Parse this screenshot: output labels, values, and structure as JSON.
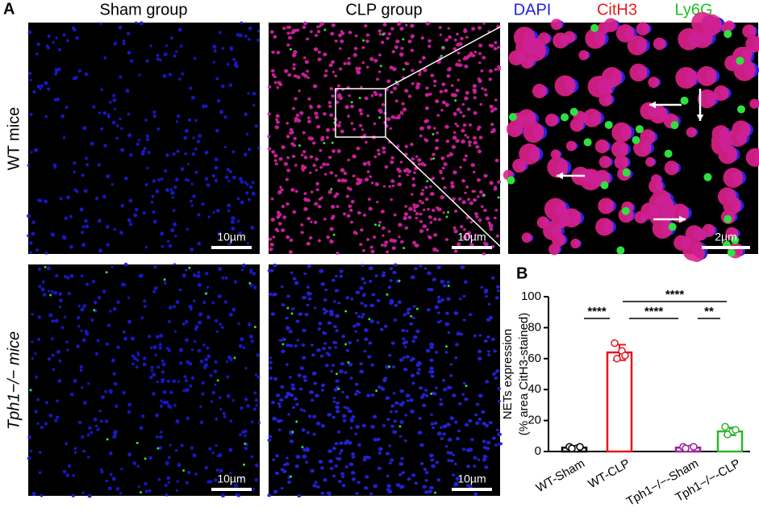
{
  "panel_a": {
    "label": "A",
    "columns": [
      "Sham group",
      "CLP group"
    ],
    "stains": [
      "DAPI",
      "CitH3",
      "Ly6G"
    ],
    "rows": [
      "WT mice",
      "Tph1−/− mice"
    ],
    "scale_bars": [
      "10µm",
      "10µm",
      "2µm",
      "10µm",
      "10µm"
    ]
  },
  "chart_data": {
    "type": "bar",
    "label": "B",
    "ylabel": [
      "NETs expression",
      "(% area CitH3-stained)"
    ],
    "categories": [
      "WT-Sham",
      "WT-CLP",
      "Tph1−/−-Sham",
      "Tph1−/−-CLP"
    ],
    "values": [
      2.5,
      64,
      2.5,
      13
    ],
    "errors": [
      1,
      5,
      1,
      2.5
    ],
    "points": [
      [
        3,
        2,
        2,
        3
      ],
      [
        70,
        65,
        60,
        62
      ],
      [
        3,
        2,
        2,
        3
      ],
      [
        16,
        13,
        11,
        14
      ]
    ],
    "colors": [
      "#000000",
      "#e8141c",
      "#9b1c9b",
      "#2fb52f"
    ],
    "ylim": [
      0,
      100
    ],
    "yticks": [
      0,
      20,
      40,
      60,
      80,
      100
    ],
    "annotations": [
      {
        "label": "****",
        "between": [
          0,
          1
        ]
      },
      {
        "label": "****",
        "between": [
          1,
          2
        ]
      },
      {
        "label": "**",
        "between": [
          2,
          3
        ]
      },
      {
        "label": "****",
        "between": [
          1,
          3
        ]
      }
    ]
  }
}
